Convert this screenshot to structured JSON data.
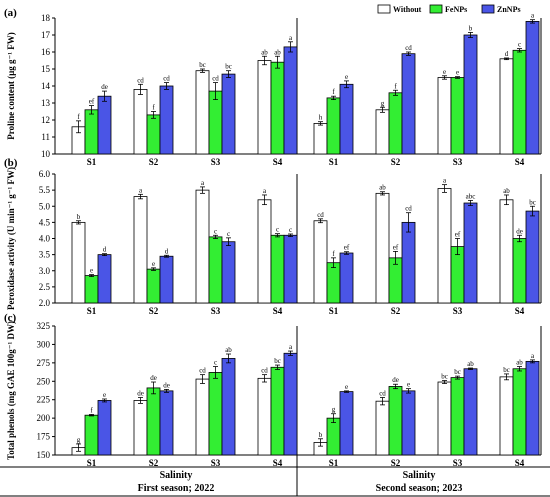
{
  "colors": {
    "Without": "#ffffff",
    "FeNPs": "#33ee33",
    "ZnNPs": "#4a55e6"
  },
  "legend": [
    {
      "label": "Without",
      "color": "#ffffff"
    },
    {
      "label": "FeNPs",
      "color": "#33ee33"
    },
    {
      "label": "ZnNPs",
      "color": "#4a55e6"
    }
  ],
  "footer": {
    "group_title": "Salinity",
    "season1": "First season; 2022",
    "season2": "Second season; 2023"
  },
  "chart_data": [
    {
      "type": "bar",
      "panel_label": "(a)",
      "ylabel": "Proline content (µg g⁻¹ FW)",
      "ylim": [
        10,
        18
      ],
      "yticks": [
        10,
        11,
        12,
        13,
        14,
        15,
        16,
        17,
        18
      ],
      "grid": false,
      "legend_position": "top-right",
      "categories": [
        "S1",
        "S2",
        "S3",
        "S4"
      ],
      "seasons": [
        {
          "name": "First season; 2022",
          "series": [
            {
              "name": "Without",
              "values": [
                11.6,
                13.8,
                14.9,
                15.5
              ],
              "errors": [
                0.35,
                0.3,
                0.1,
                0.25
              ],
              "letters": [
                "f",
                "cd",
                "bc",
                "ab"
              ]
            },
            {
              "name": "FeNPs",
              "values": [
                12.6,
                12.3,
                13.7,
                15.4
              ],
              "errors": [
                0.25,
                0.2,
                0.5,
                0.35
              ],
              "letters": [
                "ef",
                "f",
                "cd",
                "ab"
              ]
            },
            {
              "name": "ZnNPs",
              "values": [
                13.4,
                14.0,
                14.7,
                16.3
              ],
              "errors": [
                0.3,
                0.2,
                0.2,
                0.3
              ],
              "letters": [
                "de",
                "cd",
                "bc",
                "a"
              ]
            }
          ]
        },
        {
          "name": "Second season; 2023",
          "series": [
            {
              "name": "Without",
              "values": [
                11.8,
                12.6,
                14.5,
                15.6
              ],
              "errors": [
                0.1,
                0.15,
                0.1,
                0.05
              ],
              "letters": [
                "h",
                "g",
                "e",
                "d"
              ]
            },
            {
              "name": "FeNPs",
              "values": [
                13.3,
                13.6,
                14.5,
                16.1
              ],
              "errors": [
                0.1,
                0.15,
                0.05,
                0.1
              ],
              "letters": [
                "f",
                "f",
                "e",
                "c"
              ]
            },
            {
              "name": "ZnNPs",
              "values": [
                14.1,
                15.9,
                17.0,
                17.8
              ],
              "errors": [
                0.2,
                0.1,
                0.15,
                0.1
              ],
              "letters": [
                "e",
                "cd",
                "b",
                "a"
              ]
            }
          ]
        }
      ]
    },
    {
      "type": "bar",
      "panel_label": "(b)",
      "ylabel": "Peroxidase activity (U min⁻¹ g⁻¹ FW)",
      "ylim": [
        2.0,
        6.0
      ],
      "yticks": [
        2.0,
        2.5,
        3.0,
        3.5,
        4.0,
        4.5,
        5.0,
        5.5,
        6.0
      ],
      "grid": false,
      "categories": [
        "S1",
        "S2",
        "S3",
        "S4"
      ],
      "seasons": [
        {
          "name": "First season; 2022",
          "series": [
            {
              "name": "Without",
              "values": [
                4.5,
                5.3,
                5.5,
                5.2
              ],
              "errors": [
                0.05,
                0.07,
                0.1,
                0.15
              ],
              "letters": [
                "b",
                "a",
                "a",
                "a"
              ]
            },
            {
              "name": "FeNPs",
              "values": [
                2.85,
                3.05,
                4.05,
                4.1
              ],
              "errors": [
                0.03,
                0.04,
                0.05,
                0.05
              ],
              "letters": [
                "e",
                "e",
                "c",
                "c"
              ]
            },
            {
              "name": "ZnNPs",
              "values": [
                3.5,
                3.45,
                3.9,
                4.1
              ],
              "errors": [
                0.03,
                0.03,
                0.12,
                0.04
              ],
              "letters": [
                "d",
                "d",
                "c",
                "c"
              ]
            }
          ]
        },
        {
          "name": "Second season; 2023",
          "series": [
            {
              "name": "Without",
              "values": [
                4.55,
                5.4,
                5.55,
                5.2
              ],
              "errors": [
                0.06,
                0.05,
                0.12,
                0.15
              ],
              "letters": [
                "cd",
                "ab",
                "a",
                "ab"
              ]
            },
            {
              "name": "FeNPs",
              "values": [
                3.25,
                3.4,
                3.75,
                4.0
              ],
              "errors": [
                0.15,
                0.2,
                0.25,
                0.1
              ],
              "letters": [
                "f",
                "ef",
                "ef",
                "de"
              ]
            },
            {
              "name": "ZnNPs",
              "values": [
                3.55,
                4.5,
                5.1,
                4.85
              ],
              "errors": [
                0.04,
                0.3,
                0.08,
                0.15
              ],
              "letters": [
                "ef",
                "cd",
                "abc",
                "bc"
              ]
            }
          ]
        }
      ]
    },
    {
      "type": "bar",
      "panel_label": "(c)",
      "ylabel": "Total phenols (mg GAE 100g⁻¹ DW)",
      "ylim": [
        150,
        325
      ],
      "yticks": [
        150,
        175,
        200,
        225,
        250,
        275,
        300,
        325
      ],
      "grid": false,
      "categories": [
        "S1",
        "S2",
        "S3",
        "S4"
      ],
      "seasons": [
        {
          "name": "First season; 2022",
          "series": [
            {
              "name": "Without",
              "values": [
                160,
                224,
                253,
                254
              ],
              "errors": [
                5,
                4,
                6,
                5
              ],
              "letters": [
                "g",
                "de",
                "cd",
                "cd"
              ]
            },
            {
              "name": "FeNPs",
              "values": [
                204,
                241,
                262,
                269
              ],
              "errors": [
                1,
                8,
                8,
                3
              ],
              "letters": [
                "f",
                "de",
                "c",
                "bc"
              ]
            },
            {
              "name": "ZnNPs",
              "values": [
                224,
                237,
                281,
                288
              ],
              "errors": [
                2,
                2,
                6,
                3
              ],
              "letters": [
                "e",
                "de",
                "ab",
                "a"
              ]
            }
          ]
        },
        {
          "name": "Second season; 2023",
          "series": [
            {
              "name": "Without",
              "values": [
                167,
                223,
                249,
                256
              ],
              "errors": [
                5,
                5,
                2,
                4
              ],
              "letters": [
                "b",
                "cd",
                "bc",
                "bc"
              ]
            },
            {
              "name": "FeNPs",
              "values": [
                200,
                243,
                255,
                267
              ],
              "errors": [
                6,
                3,
                2,
                3
              ],
              "letters": [
                "g",
                "de",
                "bc",
                "ab"
              ]
            },
            {
              "name": "ZnNPs",
              "values": [
                236,
                237,
                267,
                277
              ],
              "errors": [
                1,
                3,
                1,
                2
              ],
              "letters": [
                "e",
                "e",
                "ab",
                "a"
              ]
            }
          ]
        }
      ]
    }
  ]
}
